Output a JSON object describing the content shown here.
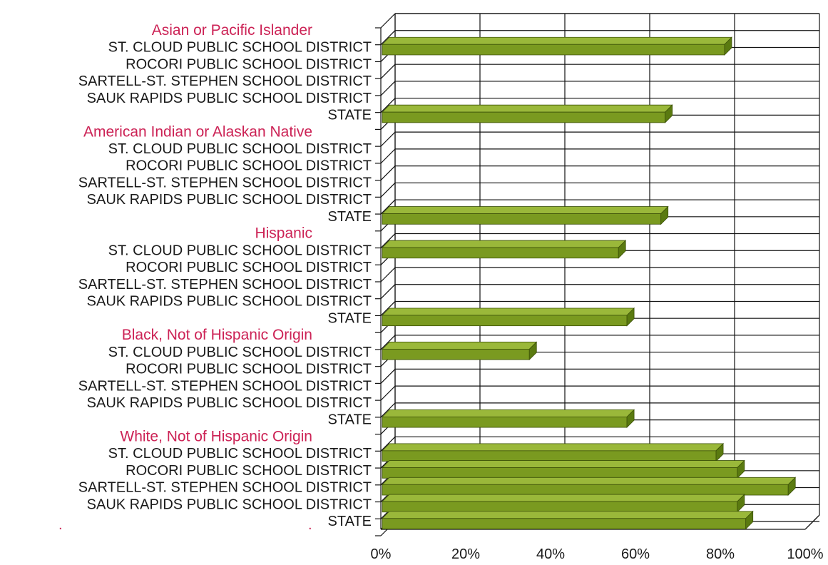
{
  "chart_data": {
    "type": "bar",
    "orientation": "horizontal",
    "three_d": true,
    "xlim": [
      0,
      100
    ],
    "xticks": [
      "0%",
      "20%",
      "40%",
      "60%",
      "80%",
      "100%"
    ],
    "bar_color": "#7a9a20",
    "bar_top_color": "#9ab83a",
    "bar_end_color": "#5a7a10",
    "group_label_color": "#cc2255",
    "stray_marks": [
      ".",
      "."
    ],
    "groups": [
      {
        "label": "Asian or Pacific Islander",
        "categories": [
          "ST. CLOUD PUBLIC SCHOOL DISTRICT",
          "ROCORI PUBLIC SCHOOL DISTRICT",
          "SARTELL-ST. STEPHEN SCHOOL DISTRICT",
          "SAUK RAPIDS PUBLIC SCHOOL DISTRICT",
          "STATE"
        ],
        "values": [
          81,
          0,
          0,
          0,
          67
        ]
      },
      {
        "label": "American Indian or Alaskan Native",
        "categories": [
          "ST. CLOUD PUBLIC SCHOOL DISTRICT",
          "ROCORI PUBLIC SCHOOL DISTRICT",
          "SARTELL-ST. STEPHEN SCHOOL DISTRICT",
          "SAUK RAPIDS PUBLIC SCHOOL DISTRICT",
          "STATE"
        ],
        "values": [
          0,
          0,
          0,
          0,
          66
        ]
      },
      {
        "label": "Hispanic",
        "categories": [
          "ST. CLOUD PUBLIC SCHOOL DISTRICT",
          "ROCORI PUBLIC SCHOOL DISTRICT",
          "SARTELL-ST. STEPHEN SCHOOL DISTRICT",
          "SAUK RAPIDS PUBLIC SCHOOL DISTRICT",
          "STATE"
        ],
        "values": [
          56,
          0,
          0,
          0,
          58
        ]
      },
      {
        "label": "Black, Not of Hispanic Origin",
        "categories": [
          "ST. CLOUD PUBLIC SCHOOL DISTRICT",
          "ROCORI PUBLIC SCHOOL DISTRICT",
          "SARTELL-ST. STEPHEN SCHOOL DISTRICT",
          "SAUK RAPIDS PUBLIC SCHOOL DISTRICT",
          "STATE"
        ],
        "values": [
          35,
          0,
          0,
          0,
          58
        ]
      },
      {
        "label": "White, Not of Hispanic Origin",
        "categories": [
          "ST. CLOUD PUBLIC SCHOOL DISTRICT",
          "ROCORI PUBLIC SCHOOL DISTRICT",
          "SARTELL-ST. STEPHEN SCHOOL DISTRICT",
          "SAUK RAPIDS PUBLIC SCHOOL DISTRICT",
          "STATE"
        ],
        "values": [
          79,
          84,
          96,
          84,
          86
        ]
      }
    ]
  }
}
